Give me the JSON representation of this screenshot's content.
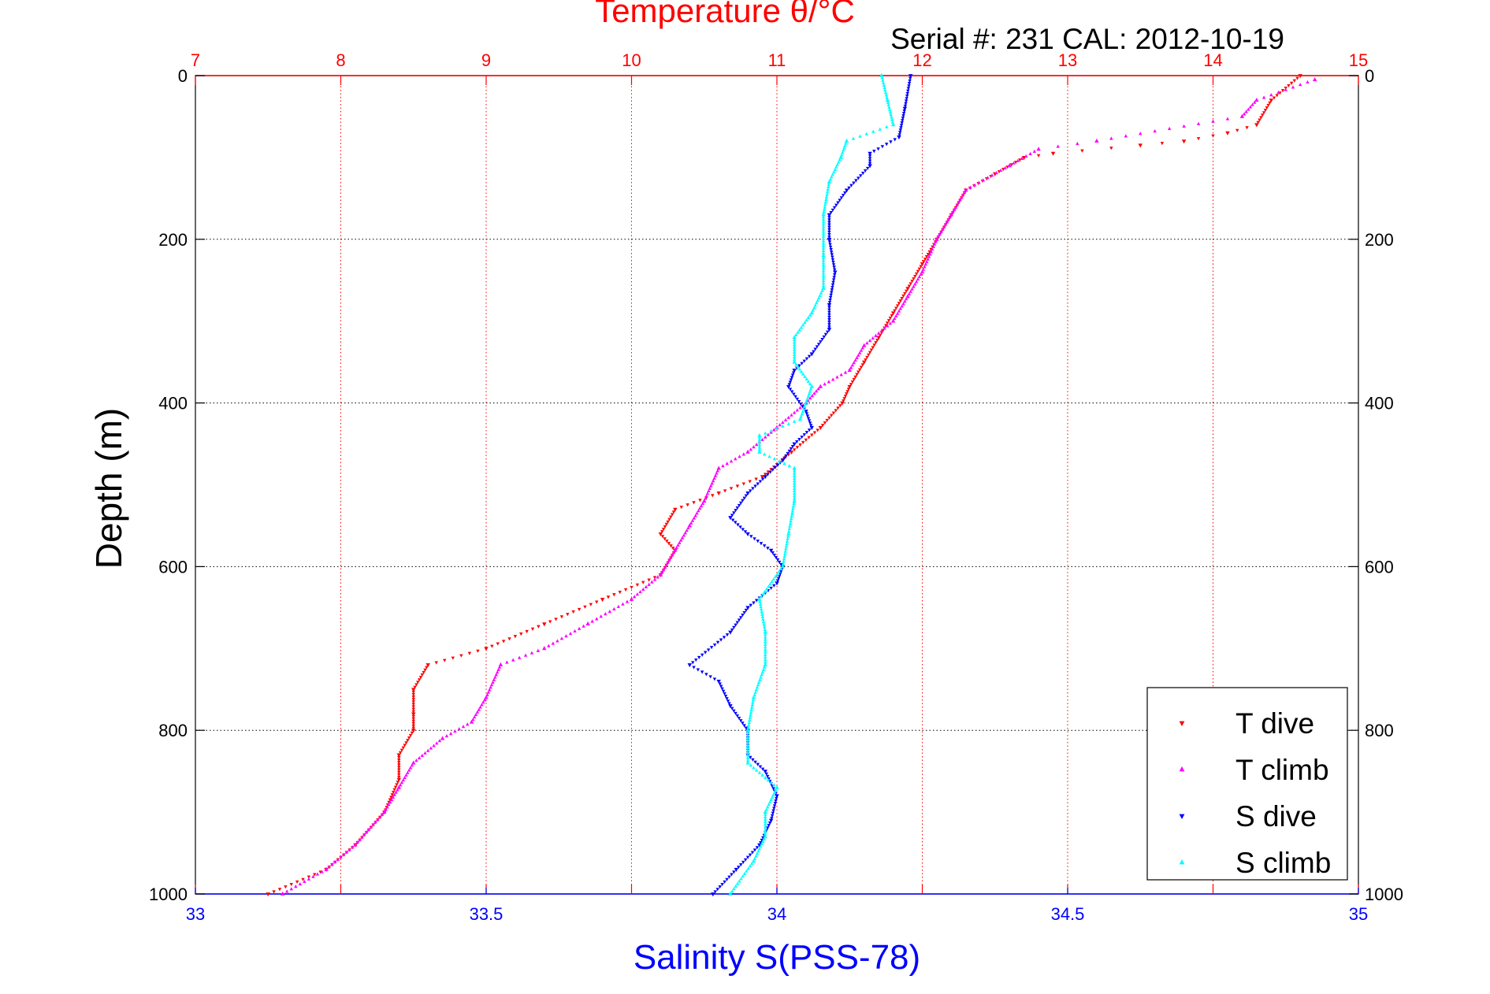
{
  "chart_data": {
    "type": "scatter",
    "title": "Temperature θ/°C",
    "subtitle": "Serial #: 231  CAL: 2012-10-19",
    "ylabel": "Depth (m)",
    "xlabel_bottom": "Salinity S(PSS-78)",
    "xlabel_top": "Temperature θ/°C",
    "y_reversed": true,
    "ylim": [
      0,
      1000
    ],
    "yticks": [
      0,
      200,
      400,
      600,
      800,
      1000
    ],
    "x_bottom_lim": [
      33,
      35
    ],
    "x_bottom_ticks": [
      33,
      33.5,
      34,
      34.5,
      35
    ],
    "x_bottom_tick_labels": [
      "33",
      "33.5",
      "34",
      "34.5",
      "35"
    ],
    "x_top_lim": [
      7,
      15
    ],
    "x_top_ticks": [
      7,
      8,
      9,
      10,
      11,
      12,
      13,
      14,
      15
    ],
    "grid": true,
    "legend_position": "bottom-right",
    "colors": {
      "temperature_axis": "#ff0000",
      "salinity_axis": "#0000ff",
      "grid_temperature": "#ff0000",
      "grid_depth": "#000000"
    },
    "series": [
      {
        "name": "T dive",
        "axis": "temperature",
        "marker": "triangle-down",
        "color": "#ff0000",
        "points": [
          [
            14.6,
            0
          ],
          [
            14.4,
            30
          ],
          [
            14.3,
            60
          ],
          [
            14.1,
            70
          ],
          [
            13.8,
            80
          ],
          [
            13.5,
            85
          ],
          [
            12.9,
            95
          ],
          [
            12.7,
            100
          ],
          [
            12.5,
            120
          ],
          [
            12.3,
            140
          ],
          [
            12.2,
            170
          ],
          [
            12.1,
            200
          ],
          [
            12.0,
            230
          ],
          [
            11.9,
            260
          ],
          [
            11.8,
            290
          ],
          [
            11.7,
            320
          ],
          [
            11.6,
            350
          ],
          [
            11.5,
            380
          ],
          [
            11.45,
            400
          ],
          [
            11.3,
            430
          ],
          [
            11.1,
            460
          ],
          [
            10.9,
            490
          ],
          [
            10.6,
            510
          ],
          [
            10.3,
            530
          ],
          [
            10.2,
            560
          ],
          [
            10.3,
            580
          ],
          [
            10.2,
            610
          ],
          [
            9.8,
            640
          ],
          [
            9.4,
            670
          ],
          [
            9.0,
            700
          ],
          [
            8.6,
            720
          ],
          [
            8.5,
            750
          ],
          [
            8.5,
            780
          ],
          [
            8.5,
            800
          ],
          [
            8.4,
            830
          ],
          [
            8.4,
            860
          ],
          [
            8.3,
            900
          ],
          [
            8.1,
            940
          ],
          [
            7.9,
            970
          ],
          [
            7.5,
            1000
          ]
        ]
      },
      {
        "name": "T climb",
        "axis": "temperature",
        "marker": "triangle-up",
        "color": "#ff00ff",
        "points": [
          [
            14.7,
            5
          ],
          [
            14.3,
            30
          ],
          [
            14.2,
            50
          ],
          [
            13.2,
            80
          ],
          [
            12.8,
            90
          ],
          [
            12.6,
            110
          ],
          [
            12.3,
            140
          ],
          [
            12.2,
            170
          ],
          [
            12.1,
            200
          ],
          [
            12.0,
            240
          ],
          [
            11.9,
            270
          ],
          [
            11.8,
            300
          ],
          [
            11.6,
            330
          ],
          [
            11.5,
            360
          ],
          [
            11.3,
            380
          ],
          [
            11.2,
            400
          ],
          [
            11.0,
            430
          ],
          [
            10.8,
            460
          ],
          [
            10.6,
            480
          ],
          [
            10.5,
            520
          ],
          [
            10.4,
            550
          ],
          [
            10.3,
            580
          ],
          [
            10.2,
            610
          ],
          [
            10.0,
            640
          ],
          [
            9.7,
            670
          ],
          [
            9.4,
            700
          ],
          [
            9.1,
            720
          ],
          [
            9.0,
            760
          ],
          [
            8.9,
            790
          ],
          [
            8.7,
            810
          ],
          [
            8.5,
            840
          ],
          [
            8.4,
            870
          ],
          [
            8.3,
            900
          ],
          [
            8.1,
            940
          ],
          [
            7.9,
            970
          ],
          [
            7.6,
            1000
          ]
        ]
      },
      {
        "name": "S dive",
        "axis": "salinity",
        "marker": "triangle-down",
        "color": "#0000ff",
        "points": [
          [
            34.23,
            0
          ],
          [
            34.22,
            40
          ],
          [
            34.21,
            75
          ],
          [
            34.16,
            95
          ],
          [
            34.16,
            110
          ],
          [
            34.12,
            140
          ],
          [
            34.09,
            170
          ],
          [
            34.09,
            200
          ],
          [
            34.1,
            240
          ],
          [
            34.09,
            280
          ],
          [
            34.09,
            310
          ],
          [
            34.06,
            340
          ],
          [
            34.03,
            360
          ],
          [
            34.02,
            380
          ],
          [
            34.05,
            410
          ],
          [
            34.06,
            430
          ],
          [
            34.03,
            450
          ],
          [
            34.01,
            470
          ],
          [
            33.98,
            490
          ],
          [
            33.95,
            510
          ],
          [
            33.92,
            540
          ],
          [
            33.95,
            560
          ],
          [
            33.99,
            580
          ],
          [
            34.01,
            600
          ],
          [
            34.0,
            620
          ],
          [
            33.95,
            650
          ],
          [
            33.92,
            680
          ],
          [
            33.85,
            720
          ],
          [
            33.9,
            740
          ],
          [
            33.92,
            770
          ],
          [
            33.95,
            800
          ],
          [
            33.95,
            830
          ],
          [
            33.98,
            850
          ],
          [
            34.0,
            880
          ],
          [
            33.99,
            910
          ],
          [
            33.97,
            940
          ],
          [
            33.93,
            970
          ],
          [
            33.89,
            1000
          ]
        ]
      },
      {
        "name": "S climb",
        "axis": "salinity",
        "marker": "triangle-up",
        "color": "#00ffff",
        "points": [
          [
            34.18,
            0
          ],
          [
            34.19,
            30
          ],
          [
            34.2,
            60
          ],
          [
            34.12,
            80
          ],
          [
            34.11,
            100
          ],
          [
            34.09,
            130
          ],
          [
            34.08,
            170
          ],
          [
            34.08,
            220
          ],
          [
            34.08,
            260
          ],
          [
            34.06,
            290
          ],
          [
            34.03,
            320
          ],
          [
            34.03,
            350
          ],
          [
            34.06,
            380
          ],
          [
            34.04,
            420
          ],
          [
            33.97,
            440
          ],
          [
            33.97,
            460
          ],
          [
            34.03,
            480
          ],
          [
            34.03,
            520
          ],
          [
            34.02,
            560
          ],
          [
            34.01,
            600
          ],
          [
            33.97,
            640
          ],
          [
            33.98,
            680
          ],
          [
            33.98,
            720
          ],
          [
            33.96,
            760
          ],
          [
            33.95,
            800
          ],
          [
            33.95,
            840
          ],
          [
            34.0,
            870
          ],
          [
            33.98,
            900
          ],
          [
            33.98,
            930
          ],
          [
            33.96,
            960
          ],
          [
            33.92,
            1000
          ]
        ]
      }
    ]
  }
}
